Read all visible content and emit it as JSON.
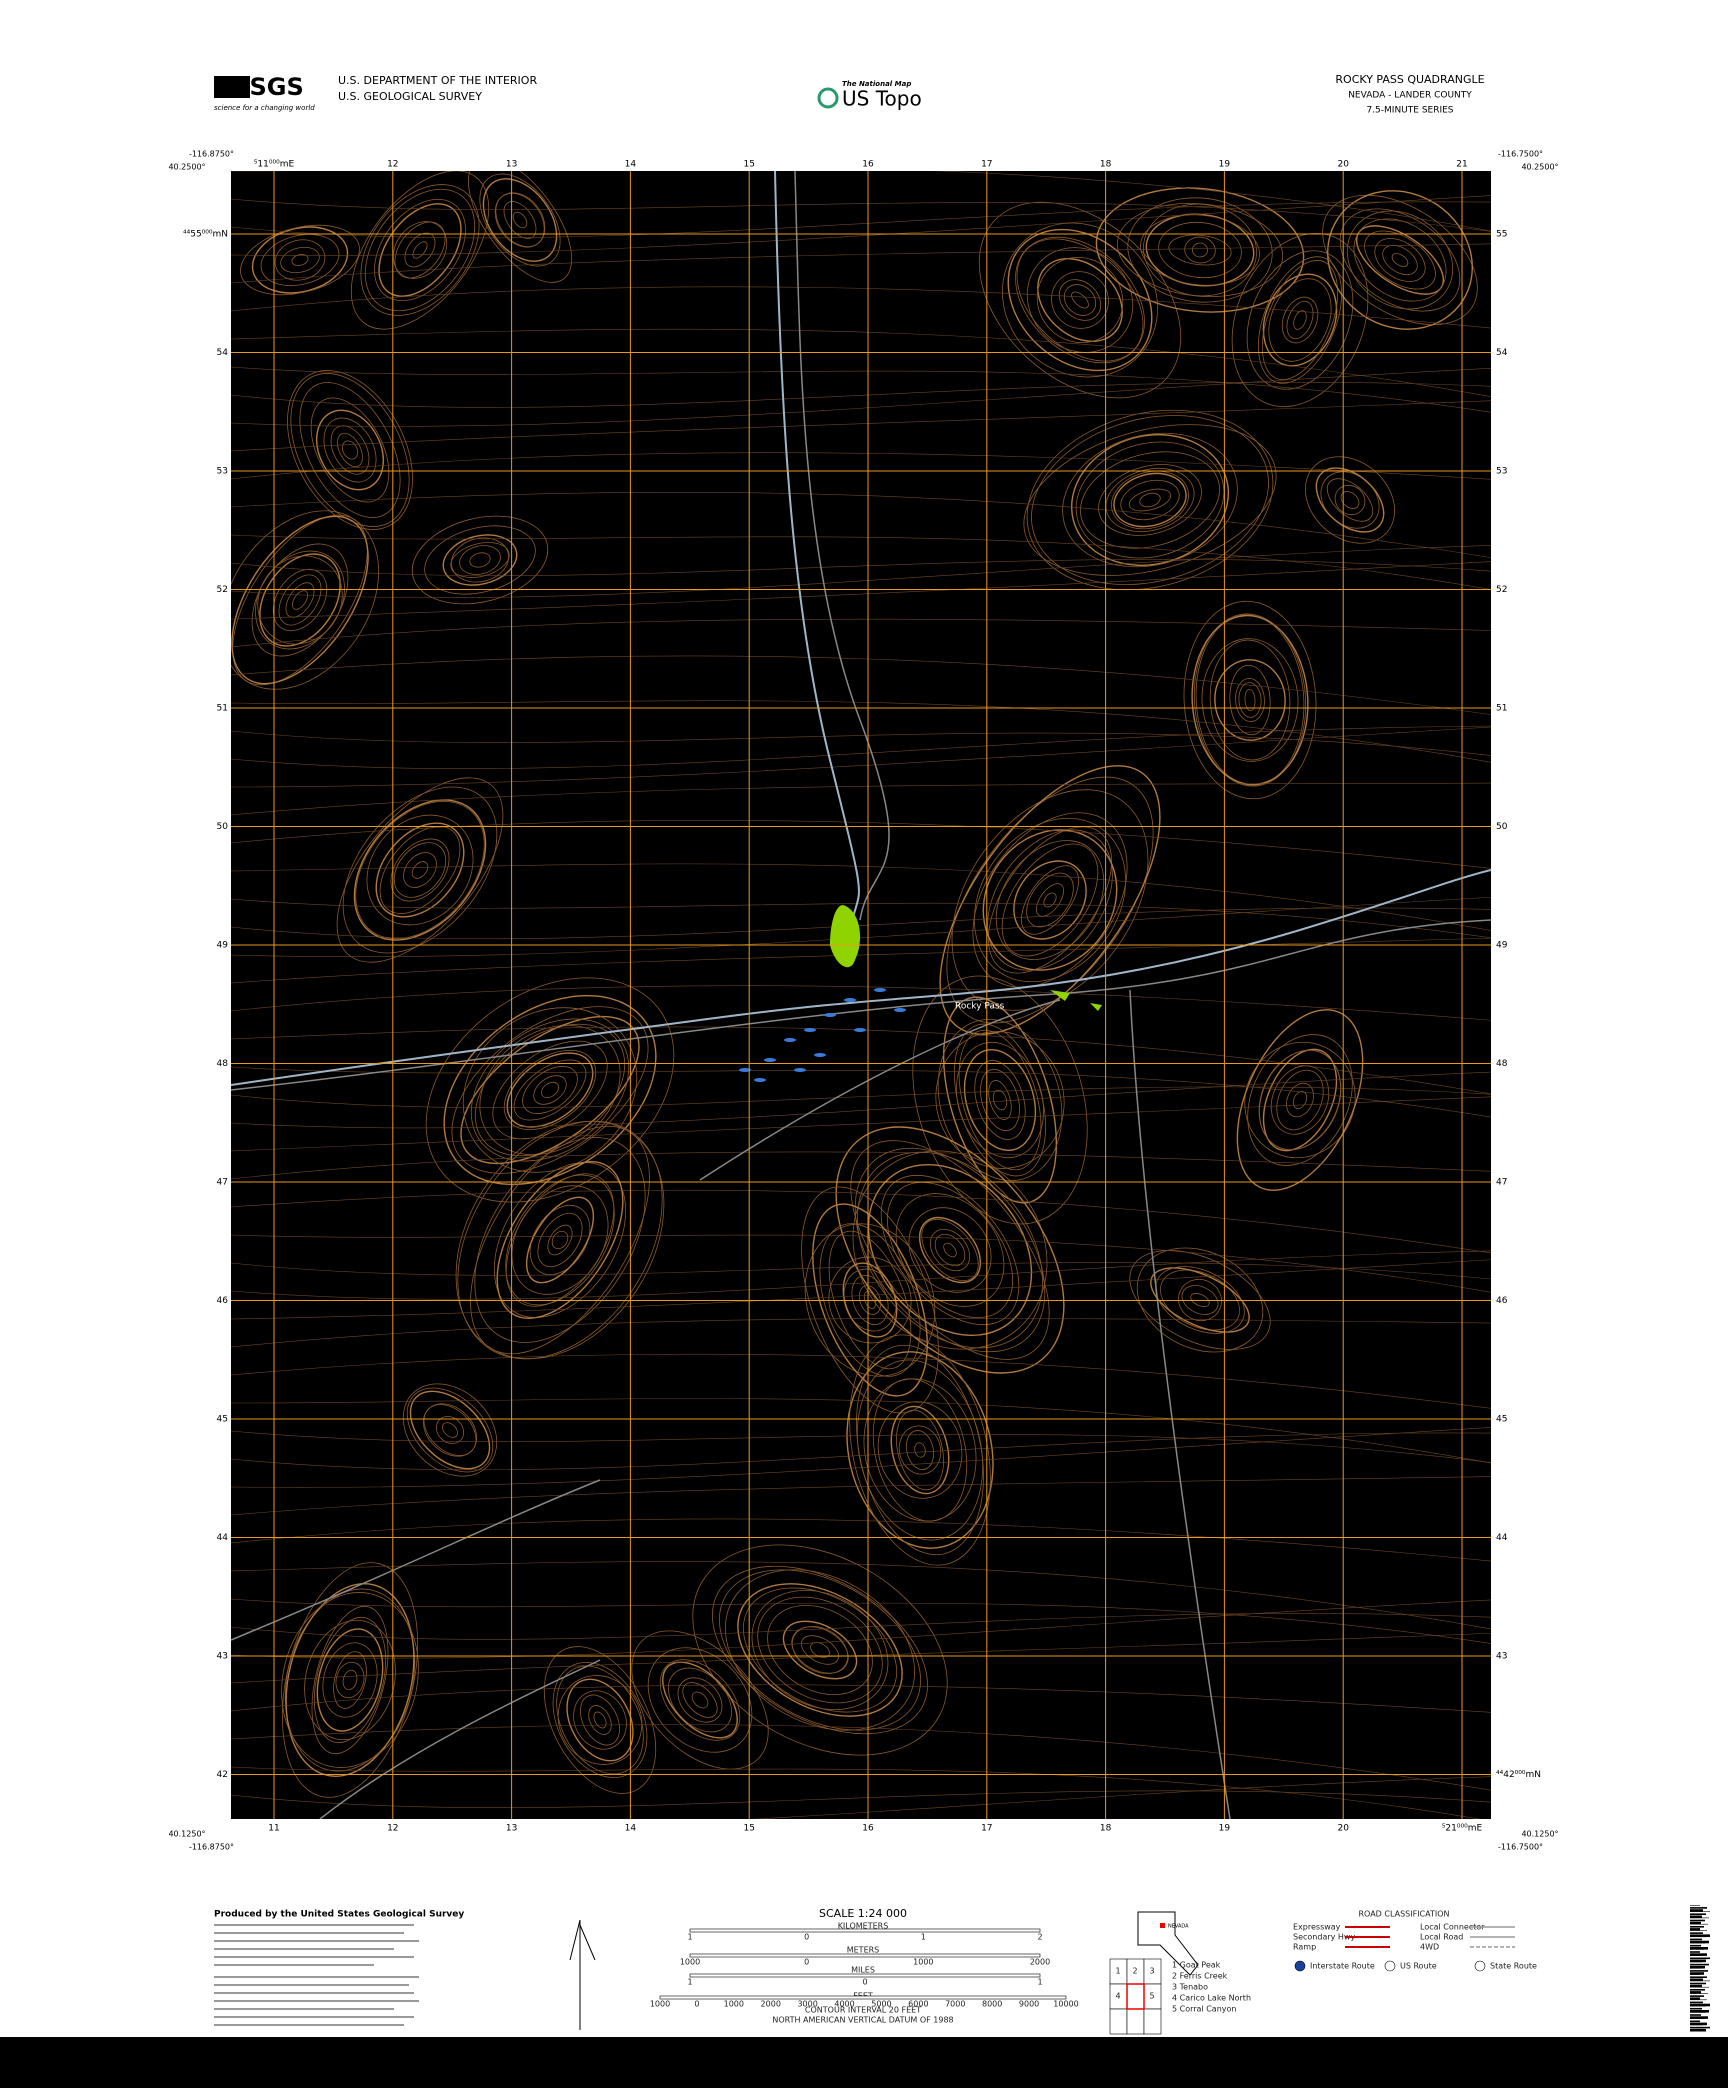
{
  "header": {
    "logo": "USGS",
    "logo_tagline": "science for a changing world",
    "agency_lines": [
      "U.S. DEPARTMENT OF THE INTERIOR",
      "U.S. GEOLOGICAL SURVEY"
    ],
    "product_top": "The National Map",
    "product": "US Topo",
    "title": "ROCKY PASS QUADRANGLE",
    "state_county": "NEVADA - LANDER COUNTY",
    "series": "7.5-MINUTE SERIES"
  },
  "corners": {
    "top_left_lon": "-116.8750°",
    "top_left_lat": "40.2500°",
    "top_right_lon": "-116.7500°",
    "top_right_lat": "40.2500°",
    "bottom_left_lat": "40.1250°",
    "bottom_left_lon": "-116.8750°",
    "bottom_right_lat": "40.1250°",
    "bottom_right_lon": "-116.7500°"
  },
  "eastings_top": [
    "⁵11⁰⁰⁰mE",
    "12",
    "13",
    "14",
    "15",
    "16",
    "17",
    "18",
    "19",
    "20",
    "21"
  ],
  "eastings_bottom": [
    "11",
    "12",
    "13",
    "14",
    "15",
    "16",
    "17",
    "18",
    "19",
    "20",
    "⁵21⁰⁰⁰mE"
  ],
  "northings_left": [
    "⁴⁴55⁰⁰⁰mN",
    "54",
    "53",
    "52",
    "51",
    "50",
    "49",
    "48",
    "47",
    "46",
    "45",
    "44",
    "43",
    "42"
  ],
  "northings_right": [
    "55",
    "54",
    "53",
    "52",
    "51",
    "50",
    "49",
    "48",
    "47",
    "46",
    "45",
    "44",
    "43",
    "⁴⁴42⁰⁰⁰mN"
  ],
  "place_names": [
    "Rocky Pass"
  ],
  "footer": {
    "producer": "Produced by the United States Geological Survey",
    "scale": "SCALE 1:24 000",
    "kilometers": "KILOMETERS",
    "meters": "METERS",
    "miles": "MILES",
    "feet": "FEET",
    "km_ticks": [
      "1",
      "0",
      "1",
      "2"
    ],
    "m_ticks": [
      "1000",
      "0",
      "1000",
      "2000"
    ],
    "mi_ticks": [
      "1",
      "0",
      "1"
    ],
    "ft_ticks": [
      "1000",
      "0",
      "1000",
      "2000",
      "3000",
      "4000",
      "5000",
      "6000",
      "7000",
      "8000",
      "9000",
      "10000"
    ],
    "contour": "CONTOUR INTERVAL 20 FEET",
    "datum": "NORTH AMERICAN VERTICAL DATUM OF 1988",
    "state": "NEVADA",
    "road_title": "ROAD CLASSIFICATION",
    "roads_left": [
      "Expressway",
      "Secondary Hwy",
      "Ramp"
    ],
    "roads_right": [
      "Local Connector",
      "Local Road",
      "4WD"
    ],
    "routes": [
      "Interstate Route",
      "US Route",
      "State Route"
    ],
    "quad_numbers": [
      "1",
      "2",
      "3",
      "4",
      "5"
    ],
    "adjoining": [
      "1 Goat Peak",
      "2 Ferris Creek",
      "3 Tenabo",
      "4 Carico Lake North",
      "5 Corral Canyon"
    ]
  }
}
